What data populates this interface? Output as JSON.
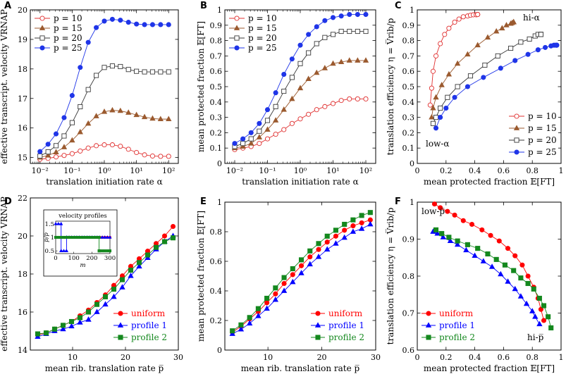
{
  "figure": {
    "panels": [
      {
        "id": "A",
        "label": "A",
        "xlabel": "translation initiation rate α",
        "ylabel": "effective transcript. velocity V̅RNAP"
      },
      {
        "id": "B",
        "label": "B",
        "xlabel": "translation initiation rate α",
        "ylabel": "mean protected fraction 𝔼[FT]"
      },
      {
        "id": "C",
        "label": "C",
        "xlabel": "mean protected fraction 𝔼[FT]",
        "ylabel": "translation efficiency η = V̅rib/p"
      },
      {
        "id": "D",
        "label": "D",
        "xlabel": "mean rib. translation rate p̅",
        "ylabel": "effective transcript. velocity V̅RNAP"
      },
      {
        "id": "E",
        "label": "E",
        "xlabel": "mean rib. translation rate p̅",
        "ylabel": "mean protected fraction 𝔼[FT]"
      },
      {
        "id": "F",
        "label": "F",
        "xlabel": "mean protected fraction 𝔼[FT]",
        "ylabel": "translation efficiency η = V̅rib/p"
      }
    ]
  },
  "chart_data": [
    {
      "id": "A",
      "type": "line",
      "xscale": "log",
      "xlim": [
        0.005,
        200
      ],
      "ylim": [
        14.8,
        20
      ],
      "xticks": [
        0.01,
        0.1,
        1,
        10,
        100
      ],
      "xticklabels": [
        "10⁻²",
        "10⁻¹",
        "10⁰",
        "10¹",
        "10²"
      ],
      "yticks": [
        15,
        16,
        17,
        18,
        19,
        20
      ],
      "legend": "top-left",
      "x": [
        0.01,
        0.0178,
        0.0316,
        0.0562,
        0.1,
        0.178,
        0.316,
        0.562,
        1,
        1.78,
        3.16,
        5.62,
        10,
        17.8,
        31.6,
        56.2,
        100
      ],
      "series": [
        {
          "name": "p = 10",
          "values": [
            14.94,
            14.97,
            15.02,
            15.07,
            15.13,
            15.22,
            15.32,
            15.4,
            15.43,
            15.43,
            15.38,
            15.28,
            15.17,
            15.09,
            15.05,
            15.04,
            15.04
          ]
        },
        {
          "name": "p = 15",
          "values": [
            15.0,
            15.07,
            15.18,
            15.35,
            15.58,
            15.86,
            16.15,
            16.4,
            16.55,
            16.6,
            16.58,
            16.52,
            16.44,
            16.37,
            16.32,
            16.3,
            16.3
          ]
        },
        {
          "name": "p = 20",
          "values": [
            15.05,
            15.19,
            15.4,
            15.73,
            16.18,
            16.72,
            17.3,
            17.78,
            18.05,
            18.1,
            18.08,
            17.98,
            17.92,
            17.9,
            17.9,
            17.9,
            17.9
          ]
        },
        {
          "name": "p = 25",
          "values": [
            15.2,
            15.45,
            15.8,
            16.35,
            17.1,
            18.05,
            18.9,
            19.4,
            19.62,
            19.68,
            19.65,
            19.58,
            19.52,
            19.5,
            19.5,
            19.5,
            19.5
          ]
        }
      ]
    },
    {
      "id": "B",
      "type": "line",
      "xscale": "log",
      "xlim": [
        0.005,
        200
      ],
      "ylim": [
        0,
        1
      ],
      "xticks": [
        0.01,
        0.1,
        1,
        10,
        100
      ],
      "xticklabels": [
        "10⁻²",
        "10⁻¹",
        "10⁰",
        "10¹",
        "10²"
      ],
      "yticks": [
        0,
        0.1,
        0.2,
        0.3,
        0.4,
        0.5,
        0.6,
        0.7,
        0.8,
        0.9,
        1
      ],
      "yticklabels": [
        "0",
        "0.1",
        "0.2",
        "0.3",
        "0.4",
        "0.5",
        "0.6",
        "0.7",
        "0.8",
        "0.9",
        "1"
      ],
      "legend": "top-left",
      "x": [
        0.01,
        0.0178,
        0.0316,
        0.0562,
        0.1,
        0.178,
        0.316,
        0.562,
        1,
        1.78,
        3.16,
        5.62,
        10,
        17.8,
        31.6,
        56.2,
        100
      ],
      "series": [
        {
          "name": "p = 10",
          "values": [
            0.09,
            0.1,
            0.11,
            0.13,
            0.16,
            0.19,
            0.22,
            0.26,
            0.29,
            0.32,
            0.35,
            0.37,
            0.39,
            0.41,
            0.42,
            0.42,
            0.42
          ]
        },
        {
          "name": "p = 15",
          "values": [
            0.1,
            0.11,
            0.13,
            0.17,
            0.22,
            0.28,
            0.35,
            0.42,
            0.49,
            0.55,
            0.59,
            0.62,
            0.65,
            0.66,
            0.67,
            0.67,
            0.67
          ]
        },
        {
          "name": "p = 20",
          "values": [
            0.11,
            0.13,
            0.16,
            0.21,
            0.28,
            0.37,
            0.47,
            0.56,
            0.65,
            0.72,
            0.78,
            0.82,
            0.84,
            0.86,
            0.86,
            0.86,
            0.86
          ]
        },
        {
          "name": "p = 25",
          "values": [
            0.13,
            0.16,
            0.2,
            0.26,
            0.35,
            0.46,
            0.58,
            0.68,
            0.77,
            0.84,
            0.89,
            0.93,
            0.95,
            0.96,
            0.97,
            0.97,
            0.97
          ]
        }
      ]
    },
    {
      "id": "C",
      "type": "line",
      "xlim": [
        0,
        1
      ],
      "ylim": [
        0,
        1
      ],
      "xticks": [
        0,
        0.2,
        0.4,
        0.6,
        0.8,
        1
      ],
      "xticklabels": [
        "0",
        "0.2",
        "0.4",
        "0.6",
        "0.8",
        "1"
      ],
      "yticks": [
        0,
        0.1,
        0.2,
        0.3,
        0.4,
        0.5,
        0.6,
        0.7,
        0.8,
        0.9,
        1
      ],
      "yticklabels": [
        "0",
        "0.1",
        "0.2",
        "0.3",
        "0.4",
        "0.5",
        "0.6",
        "0.7",
        "0.8",
        "0.9",
        "1"
      ],
      "legend": "bottom-right",
      "annotations": [
        "low-α",
        "hi-α"
      ],
      "series": [
        {
          "name": "p = 10",
          "x": [
            0.09,
            0.1,
            0.11,
            0.13,
            0.16,
            0.19,
            0.22,
            0.26,
            0.29,
            0.32,
            0.35,
            0.37,
            0.39,
            0.41,
            0.42,
            0.42,
            0.42
          ],
          "values": [
            0.38,
            0.49,
            0.6,
            0.7,
            0.78,
            0.84,
            0.88,
            0.92,
            0.94,
            0.955,
            0.96,
            0.965,
            0.968,
            0.968,
            0.97,
            0.97,
            0.97
          ]
        },
        {
          "name": "p = 15",
          "x": [
            0.1,
            0.11,
            0.13,
            0.17,
            0.22,
            0.28,
            0.35,
            0.42,
            0.49,
            0.55,
            0.59,
            0.62,
            0.65,
            0.66,
            0.67,
            0.67,
            0.67
          ],
          "values": [
            0.3,
            0.36,
            0.43,
            0.51,
            0.58,
            0.65,
            0.71,
            0.77,
            0.82,
            0.86,
            0.88,
            0.9,
            0.91,
            0.915,
            0.92,
            0.92,
            0.92
          ]
        },
        {
          "name": "p = 20",
          "x": [
            0.11,
            0.13,
            0.16,
            0.21,
            0.28,
            0.37,
            0.47,
            0.56,
            0.65,
            0.72,
            0.78,
            0.82,
            0.84,
            0.86,
            0.86,
            0.86,
            0.86
          ],
          "values": [
            0.26,
            0.3,
            0.36,
            0.43,
            0.5,
            0.57,
            0.64,
            0.7,
            0.75,
            0.79,
            0.81,
            0.83,
            0.84,
            0.84,
            0.84,
            0.84,
            0.84
          ]
        },
        {
          "name": "p = 25",
          "x": [
            0.13,
            0.16,
            0.2,
            0.26,
            0.35,
            0.46,
            0.58,
            0.68,
            0.77,
            0.84,
            0.89,
            0.93,
            0.95,
            0.96,
            0.97,
            0.97,
            0.97
          ],
          "values": [
            0.23,
            0.3,
            0.36,
            0.43,
            0.5,
            0.56,
            0.62,
            0.67,
            0.71,
            0.74,
            0.755,
            0.765,
            0.77,
            0.77,
            0.77,
            0.77,
            0.77
          ]
        }
      ]
    },
    {
      "id": "D",
      "type": "line",
      "xlim": [
        2,
        30
      ],
      "ylim": [
        14,
        22
      ],
      "xticks": [
        10,
        20,
        30
      ],
      "xticklabels": [
        "10",
        "20",
        "30"
      ],
      "yticks": [
        14,
        16,
        18,
        20,
        22
      ],
      "yticklabels": [
        "14",
        "16",
        "18",
        "20",
        "22"
      ],
      "legend": "bottom-right",
      "x": [
        3.4,
        5,
        6.6,
        8.2,
        9.8,
        11.4,
        13,
        14.6,
        16.2,
        17.8,
        19.4,
        21,
        22.6,
        24.2,
        25.8,
        27.4,
        29
      ],
      "series": [
        {
          "name": "uniform",
          "values": [
            14.8,
            14.9,
            15.1,
            15.3,
            15.5,
            15.8,
            16.1,
            16.5,
            16.9,
            17.4,
            17.9,
            18.4,
            18.8,
            19.2,
            19.6,
            20.0,
            20.5
          ]
        },
        {
          "name": "profile 1",
          "values": [
            14.7,
            14.85,
            15.0,
            15.1,
            15.25,
            15.45,
            15.6,
            16.0,
            16.4,
            16.8,
            17.3,
            17.9,
            18.4,
            18.85,
            19.3,
            19.7,
            20.0
          ]
        },
        {
          "name": "profile 2",
          "values": [
            14.85,
            14.9,
            15.1,
            15.3,
            15.5,
            15.7,
            16.0,
            16.4,
            16.8,
            17.2,
            17.7,
            18.2,
            18.6,
            19.0,
            19.4,
            19.7,
            19.9
          ]
        }
      ],
      "inset": {
        "title": "velocity profiles",
        "xlabel": "m",
        "ylabel": "p/p̅",
        "xlim": [
          0,
          300
        ],
        "ylim": [
          0.4,
          1.6
        ],
        "xticks": [
          0,
          100,
          200,
          300
        ],
        "xticklabels": [
          "0",
          "100",
          "200",
          "300"
        ],
        "yticks": [
          0.5,
          1,
          1.5
        ],
        "yticklabels": [
          "0.5",
          "1",
          "1.5"
        ],
        "series": [
          {
            "name": "uniform",
            "x": [
              0,
              300
            ],
            "values": [
              1.0,
              1.0
            ]
          },
          {
            "name": "profile 1",
            "x": [
              0,
              30,
              30,
              60,
              60,
              300
            ],
            "values": [
              1.5,
              1.5,
              0.5,
              0.5,
              1.0,
              1.0
            ]
          },
          {
            "name": "profile 2",
            "x": [
              0,
              240,
              240,
              300
            ],
            "values": [
              1.0,
              1.0,
              0.5,
              0.5
            ]
          }
        ]
      }
    },
    {
      "id": "E",
      "type": "line",
      "xlim": [
        2,
        30
      ],
      "ylim": [
        0,
        1
      ],
      "xticks": [
        10,
        20,
        30
      ],
      "xticklabels": [
        "10",
        "20",
        "30"
      ],
      "yticks": [
        0,
        0.2,
        0.4,
        0.6,
        0.8,
        1
      ],
      "yticklabels": [
        "0",
        "0.2",
        "0.4",
        "0.6",
        "0.8",
        "1"
      ],
      "legend": "bottom-right",
      "x": [
        3.4,
        5,
        6.6,
        8.2,
        9.8,
        11.4,
        13,
        14.6,
        16.2,
        17.8,
        19.4,
        21,
        22.6,
        24.2,
        25.8,
        27.4,
        29
      ],
      "series": [
        {
          "name": "uniform",
          "values": [
            0.12,
            0.16,
            0.21,
            0.26,
            0.32,
            0.38,
            0.45,
            0.51,
            0.57,
            0.63,
            0.68,
            0.73,
            0.77,
            0.81,
            0.84,
            0.86,
            0.88
          ]
        },
        {
          "name": "profile 1",
          "values": [
            0.11,
            0.14,
            0.18,
            0.23,
            0.28,
            0.34,
            0.4,
            0.46,
            0.52,
            0.58,
            0.63,
            0.68,
            0.72,
            0.76,
            0.8,
            0.82,
            0.85
          ]
        },
        {
          "name": "profile 2",
          "values": [
            0.13,
            0.17,
            0.22,
            0.28,
            0.35,
            0.42,
            0.49,
            0.55,
            0.61,
            0.67,
            0.72,
            0.77,
            0.81,
            0.85,
            0.88,
            0.91,
            0.93
          ]
        }
      ]
    },
    {
      "id": "F",
      "type": "line",
      "xlim": [
        0,
        1
      ],
      "ylim": [
        0.6,
        1
      ],
      "xticks": [
        0,
        0.2,
        0.4,
        0.6,
        0.8,
        1
      ],
      "xticklabels": [
        "0",
        "0.2",
        "0.4",
        "0.6",
        "0.8",
        "1"
      ],
      "yticks": [
        0.6,
        0.7,
        0.8,
        0.9,
        1
      ],
      "yticklabels": [
        "0.6",
        "0.7",
        "0.8",
        "0.9",
        "1"
      ],
      "legend": "bottom-left",
      "annotations": [
        "low-p̅",
        "hi-p̅"
      ],
      "series": [
        {
          "name": "uniform",
          "x": [
            0.12,
            0.16,
            0.21,
            0.26,
            0.32,
            0.38,
            0.45,
            0.51,
            0.57,
            0.63,
            0.68,
            0.73,
            0.77,
            0.81,
            0.84,
            0.86,
            0.88
          ],
          "values": [
            0.995,
            0.985,
            0.975,
            0.965,
            0.95,
            0.94,
            0.925,
            0.91,
            0.895,
            0.875,
            0.855,
            0.83,
            0.8,
            0.77,
            0.74,
            0.71,
            0.68
          ]
        },
        {
          "name": "profile 1",
          "x": [
            0.11,
            0.14,
            0.18,
            0.23,
            0.28,
            0.34,
            0.4,
            0.46,
            0.52,
            0.58,
            0.63,
            0.68,
            0.72,
            0.76,
            0.8,
            0.82,
            0.85
          ],
          "values": [
            0.92,
            0.915,
            0.905,
            0.895,
            0.885,
            0.87,
            0.855,
            0.84,
            0.825,
            0.805,
            0.785,
            0.765,
            0.745,
            0.725,
            0.705,
            0.69,
            0.67
          ]
        },
        {
          "name": "profile 2",
          "x": [
            0.13,
            0.17,
            0.22,
            0.28,
            0.35,
            0.42,
            0.49,
            0.55,
            0.61,
            0.67,
            0.72,
            0.77,
            0.81,
            0.85,
            0.88,
            0.91,
            0.93
          ],
          "values": [
            0.925,
            0.915,
            0.905,
            0.895,
            0.885,
            0.875,
            0.86,
            0.845,
            0.83,
            0.815,
            0.795,
            0.78,
            0.765,
            0.74,
            0.72,
            0.69,
            0.66
          ]
        }
      ]
    }
  ],
  "styles": {
    "panels_AC": [
      {
        "color": "#e03030",
        "marker": "circle-open"
      },
      {
        "color": "#9b5a2f",
        "marker": "triangle"
      },
      {
        "color": "#3a3a3a",
        "marker": "square-open"
      },
      {
        "color": "#1f35e8",
        "marker": "circle"
      }
    ],
    "panels_DF": [
      {
        "color": "#ff0000",
        "marker": "circle"
      },
      {
        "color": "#0000ff",
        "marker": "triangle"
      },
      {
        "color": "#14881e",
        "marker": "square"
      }
    ]
  }
}
